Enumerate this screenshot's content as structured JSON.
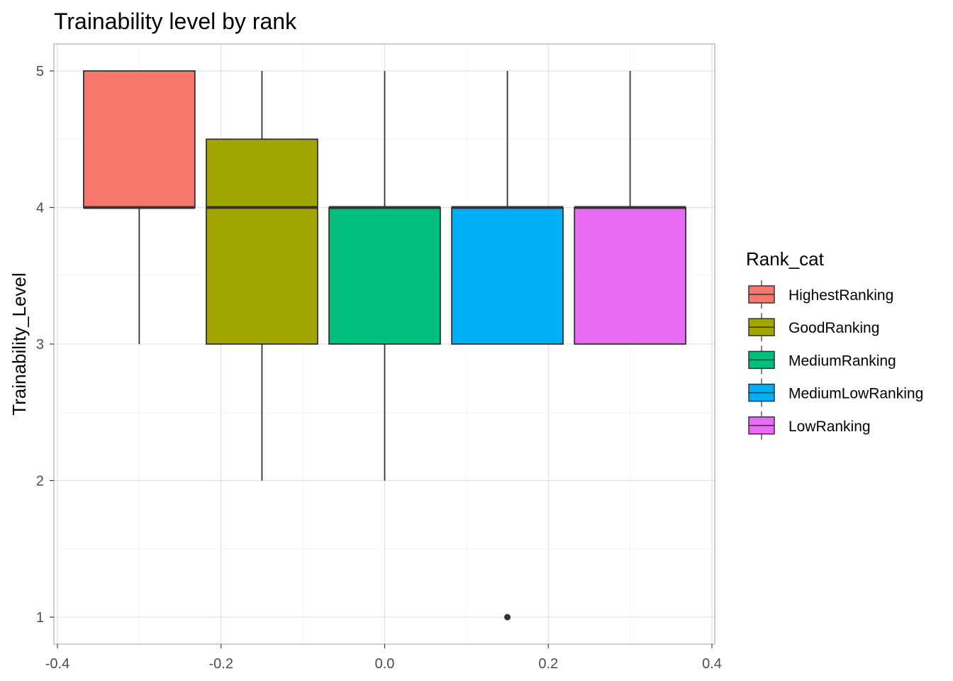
{
  "chart_data": {
    "type": "boxplot",
    "title": "Trainability level by rank",
    "xlabel": "",
    "ylabel": "Trainability_Level",
    "xlim": [
      -0.4,
      0.4
    ],
    "ylim": [
      1,
      5
    ],
    "x_ticks": [
      "-0.4",
      "-0.2",
      "0.0",
      "0.2",
      "0.4"
    ],
    "y_ticks": [
      "1",
      "2",
      "3",
      "4",
      "5"
    ],
    "grid": true,
    "legend": {
      "title": "Rank_cat",
      "position": "right",
      "entries": [
        "HighestRanking",
        "GoodRanking",
        "MediumRanking",
        "MediumLowRanking",
        "LowRanking"
      ]
    },
    "series": [
      {
        "name": "HighestRanking",
        "color": "#F8766D",
        "x": -0.3,
        "x_range": [
          -0.368,
          -0.232
        ],
        "whisker_low": 3,
        "q1": 4,
        "median": 4,
        "q3": 5,
        "whisker_high": 5,
        "outliers": []
      },
      {
        "name": "GoodRanking",
        "color": "#A3A500",
        "x": -0.15,
        "x_range": [
          -0.218,
          -0.082
        ],
        "whisker_low": 2,
        "q1": 3,
        "median": 4,
        "q3": 4.5,
        "whisker_high": 5,
        "outliers": []
      },
      {
        "name": "MediumRanking",
        "color": "#00BF7D",
        "x": 0.0,
        "x_range": [
          -0.068,
          0.068
        ],
        "whisker_low": 2,
        "q1": 3,
        "median": 4,
        "q3": 4,
        "whisker_high": 5,
        "outliers": []
      },
      {
        "name": "MediumLowRanking",
        "color": "#00B0F6",
        "x": 0.15,
        "x_range": [
          0.082,
          0.218
        ],
        "whisker_low": 3,
        "q1": 3,
        "median": 4,
        "q3": 4,
        "whisker_high": 5,
        "outliers": [
          1
        ]
      },
      {
        "name": "LowRanking",
        "color": "#E76BF3",
        "x": 0.3,
        "x_range": [
          0.232,
          0.368
        ],
        "whisker_low": 3,
        "q1": 3,
        "median": 4,
        "q3": 4,
        "whisker_high": 5,
        "outliers": []
      }
    ]
  }
}
